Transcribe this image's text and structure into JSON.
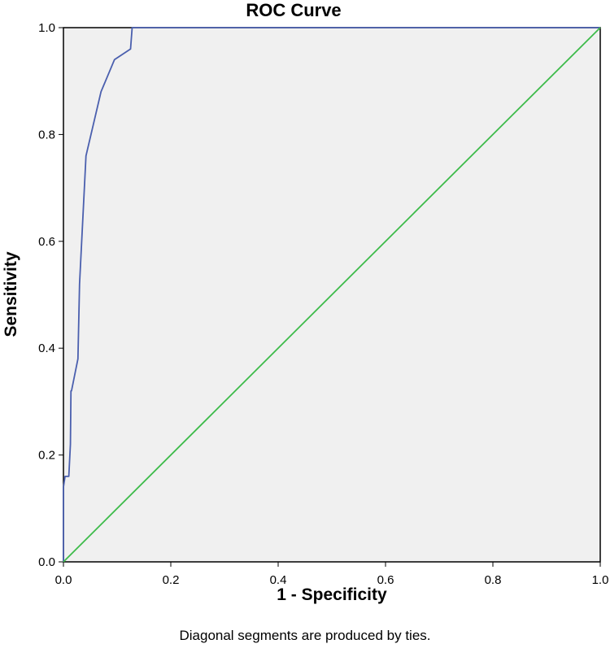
{
  "chart_data": {
    "type": "line",
    "title": "ROC Curve",
    "xlabel": "1 - Specificity",
    "ylabel": "Sensitivity",
    "footnote": "Diagonal segments are produced by ties.",
    "xlim": [
      0.0,
      1.0
    ],
    "ylim": [
      0.0,
      1.0
    ],
    "x_ticks": [
      "0.0",
      "0.2",
      "0.4",
      "0.6",
      "0.8",
      "1.0"
    ],
    "y_ticks": [
      "0.0",
      "0.2",
      "0.4",
      "0.6",
      "0.8",
      "1.0"
    ],
    "grid": false,
    "legend": "none",
    "series": [
      {
        "color": "#4a5fae",
        "x": [
          0.0,
          0.0,
          0.003,
          0.007,
          0.01,
          0.013,
          0.014,
          0.015,
          0.027,
          0.03,
          0.042,
          0.07,
          0.095,
          0.125,
          0.128,
          1.0
        ],
        "y": [
          0.0,
          0.14,
          0.16,
          0.16,
          0.16,
          0.22,
          0.32,
          0.32,
          0.38,
          0.52,
          0.76,
          0.88,
          0.94,
          0.96,
          1.0,
          1.0
        ]
      },
      {
        "color": "#3dbb4a",
        "x": [
          0.0,
          1.0
        ],
        "y": [
          0.0,
          1.0
        ]
      }
    ],
    "plot_background": "#f0f0f0"
  }
}
